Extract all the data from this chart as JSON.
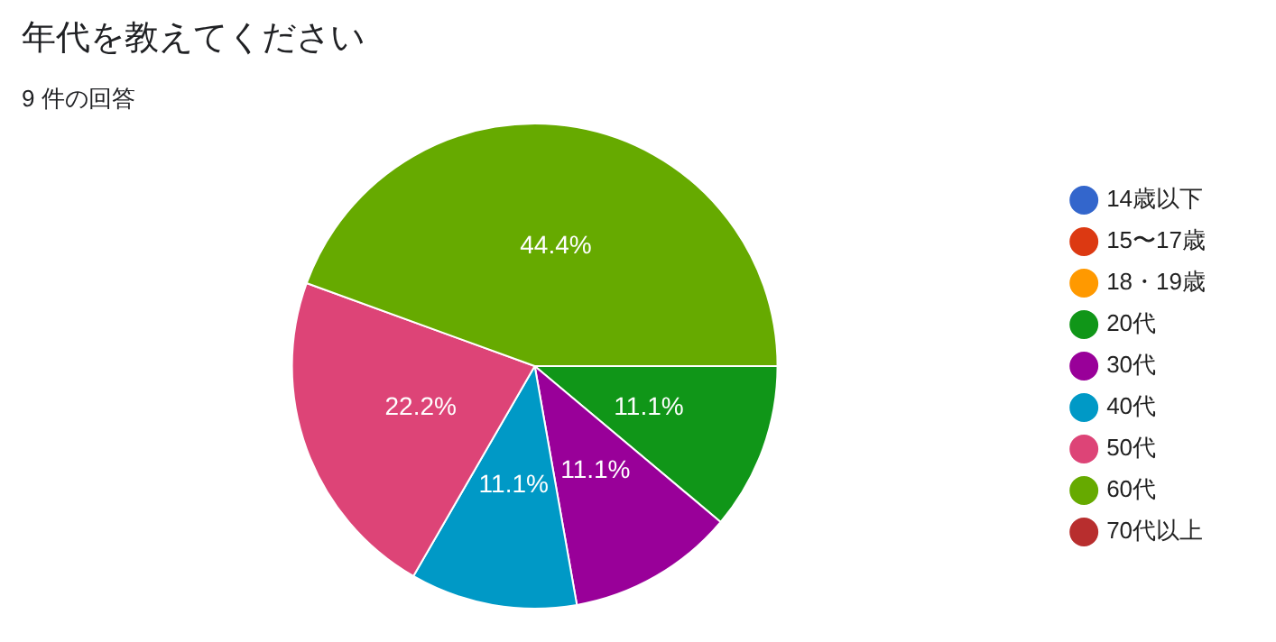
{
  "chart_data": {
    "type": "pie",
    "title": "年代を教えてください",
    "subtitle": "9 件の回答",
    "categories": [
      "14歳以下",
      "15〜17歳",
      "18・19歳",
      "20代",
      "30代",
      "40代",
      "50代",
      "60代",
      "70代以上"
    ],
    "values": [
      0,
      0,
      0,
      11.1,
      11.1,
      11.1,
      22.2,
      44.4,
      0
    ],
    "colors": [
      "#3366cc",
      "#dc3912",
      "#ff9900",
      "#109618",
      "#990099",
      "#0099c6",
      "#dd4477",
      "#66aa00",
      "#b82e2e"
    ],
    "value_labels": [
      null,
      null,
      null,
      "11.1%",
      "11.1%",
      "11.1%",
      "22.2%",
      "44.4%",
      null
    ],
    "legend": "right"
  }
}
